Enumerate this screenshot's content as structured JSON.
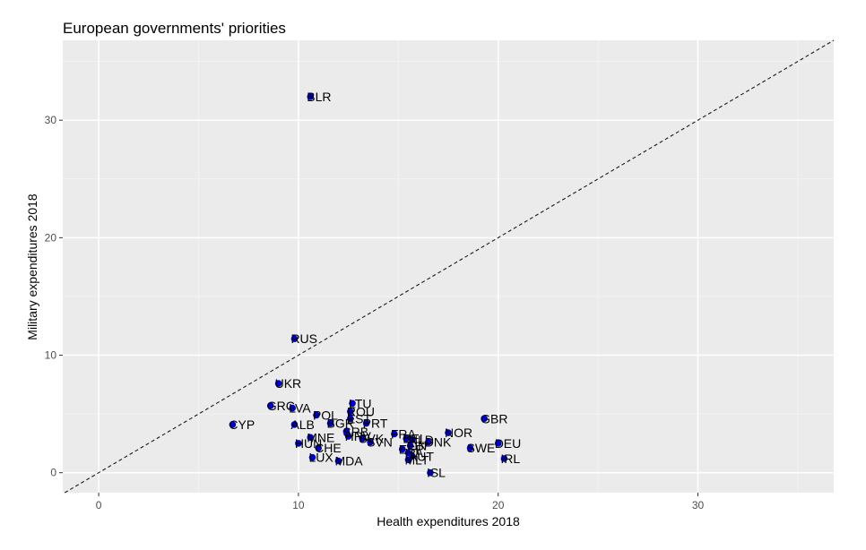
{
  "chart_data": {
    "type": "scatter",
    "title": "European governments' priorities",
    "xlabel": "Health expenditures 2018",
    "ylabel": "Military expenditures 2018",
    "xlim": [
      -1.8,
      36.8
    ],
    "ylim": [
      -1.7,
      36.8
    ],
    "x_ticks": [
      0,
      10,
      20,
      30
    ],
    "y_ticks": [
      0,
      10,
      20,
      30
    ],
    "grid": true,
    "reference_line": {
      "type": "identity",
      "style": "dashed",
      "slope": 1,
      "intercept": 0
    },
    "point_color": "#0000cc",
    "panel_color": "#ebebeb",
    "points": [
      {
        "label": "BLR",
        "x": 10.6,
        "y": 32.0
      },
      {
        "label": "RUS",
        "x": 9.8,
        "y": 11.4
      },
      {
        "label": "UKR",
        "x": 9.0,
        "y": 7.6
      },
      {
        "label": "GRC",
        "x": 8.6,
        "y": 5.7
      },
      {
        "label": "LVA",
        "x": 9.7,
        "y": 5.5
      },
      {
        "label": "CYP",
        "x": 6.7,
        "y": 4.1
      },
      {
        "label": "POL",
        "x": 10.9,
        "y": 4.9
      },
      {
        "label": "ALB",
        "x": 9.8,
        "y": 4.1
      },
      {
        "label": "LTU",
        "x": 12.7,
        "y": 5.9
      },
      {
        "label": "ROU",
        "x": 12.6,
        "y": 5.2
      },
      {
        "label": "EST",
        "x": 12.6,
        "y": 4.6
      },
      {
        "label": "BGR",
        "x": 11.6,
        "y": 4.2
      },
      {
        "label": "PRT",
        "x": 13.4,
        "y": 4.2
      },
      {
        "label": "SRB",
        "x": 12.4,
        "y": 3.5
      },
      {
        "label": "HRV",
        "x": 12.5,
        "y": 3.1
      },
      {
        "label": "MNE",
        "x": 10.6,
        "y": 3.0
      },
      {
        "label": "SVK",
        "x": 13.2,
        "y": 2.9
      },
      {
        "label": "SVN",
        "x": 13.6,
        "y": 2.6
      },
      {
        "label": "HUN",
        "x": 10.0,
        "y": 2.5
      },
      {
        "label": "CHE",
        "x": 11.0,
        "y": 2.1
      },
      {
        "label": "LUX",
        "x": 10.7,
        "y": 1.3
      },
      {
        "label": "MDA",
        "x": 12.0,
        "y": 1.0
      },
      {
        "label": "FRA",
        "x": 14.8,
        "y": 3.3
      },
      {
        "label": "BEL",
        "x": 15.4,
        "y": 2.9
      },
      {
        "label": "NLD",
        "x": 15.7,
        "y": 2.8
      },
      {
        "label": "FIN",
        "x": 15.6,
        "y": 2.3
      },
      {
        "label": "ESP",
        "x": 15.2,
        "y": 2.0
      },
      {
        "label": "ITA",
        "x": 15.5,
        "y": 1.7
      },
      {
        "label": "AUT",
        "x": 15.7,
        "y": 1.4
      },
      {
        "label": "MLT",
        "x": 15.5,
        "y": 1.1
      },
      {
        "label": "DNK",
        "x": 16.5,
        "y": 2.6
      },
      {
        "label": "NOR",
        "x": 17.5,
        "y": 3.4
      },
      {
        "label": "GBR",
        "x": 19.3,
        "y": 4.6
      },
      {
        "label": "SWE",
        "x": 18.6,
        "y": 2.1
      },
      {
        "label": "DEU",
        "x": 20.0,
        "y": 2.5
      },
      {
        "label": "IRL",
        "x": 20.3,
        "y": 1.2
      },
      {
        "label": "ISL",
        "x": 16.6,
        "y": 0.0
      }
    ]
  }
}
